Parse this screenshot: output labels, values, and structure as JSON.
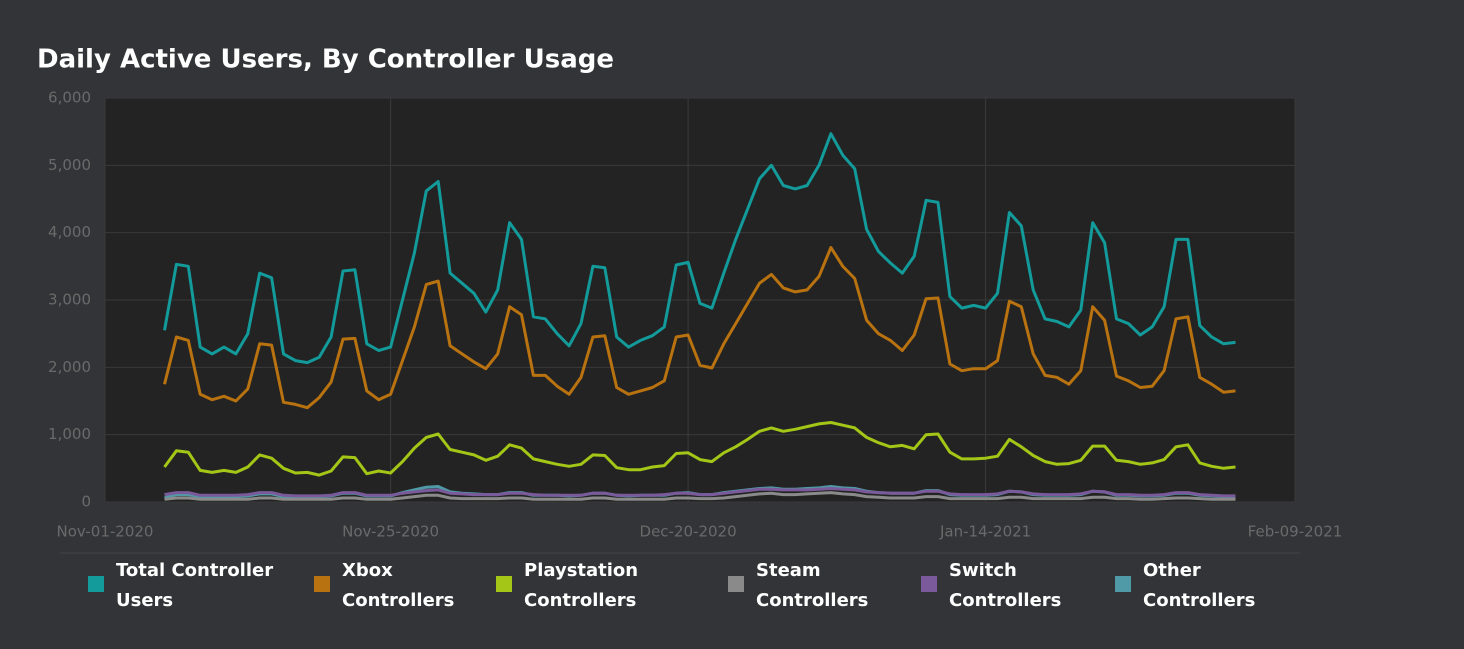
{
  "chart_data": {
    "type": "line",
    "title": "Daily Active Users, By Controller Usage",
    "x": [
      "2020-11-06",
      "2020-11-07",
      "2020-11-08",
      "2020-11-09",
      "2020-11-10",
      "2020-11-11",
      "2020-11-12",
      "2020-11-13",
      "2020-11-14",
      "2020-11-15",
      "2020-11-16",
      "2020-11-17",
      "2020-11-18",
      "2020-11-19",
      "2020-11-20",
      "2020-11-21",
      "2020-11-22",
      "2020-11-23",
      "2020-11-24",
      "2020-11-25",
      "2020-11-26",
      "2020-11-27",
      "2020-11-28",
      "2020-11-29",
      "2020-11-30",
      "2020-12-01",
      "2020-12-02",
      "2020-12-03",
      "2020-12-04",
      "2020-12-05",
      "2020-12-06",
      "2020-12-07",
      "2020-12-08",
      "2020-12-09",
      "2020-12-10",
      "2020-12-11",
      "2020-12-12",
      "2020-12-13",
      "2020-12-14",
      "2020-12-15",
      "2020-12-16",
      "2020-12-17",
      "2020-12-18",
      "2020-12-19",
      "2020-12-20",
      "2020-12-21",
      "2020-12-22",
      "2020-12-23",
      "2020-12-24",
      "2020-12-25",
      "2020-12-26",
      "2020-12-27",
      "2020-12-28",
      "2020-12-29",
      "2020-12-30",
      "2020-12-31",
      "2021-01-01",
      "2021-01-02",
      "2021-01-03",
      "2021-01-04",
      "2021-01-05",
      "2021-01-06",
      "2021-01-07",
      "2021-01-08",
      "2021-01-09",
      "2021-01-10",
      "2021-01-11",
      "2021-01-12",
      "2021-01-13",
      "2021-01-14",
      "2021-01-15",
      "2021-01-16",
      "2021-01-17",
      "2021-01-18",
      "2021-01-19",
      "2021-01-20",
      "2021-01-21",
      "2021-01-22",
      "2021-01-23",
      "2021-01-24",
      "2021-01-25",
      "2021-01-26",
      "2021-01-27",
      "2021-01-28",
      "2021-01-29",
      "2021-01-30",
      "2021-01-31",
      "2021-02-01",
      "2021-02-02",
      "2021-02-03",
      "2021-02-04"
    ],
    "series": [
      {
        "name": "Total Controller Users",
        "color": "#139a9a",
        "values": [
          2550,
          3530,
          3500,
          2300,
          2200,
          2300,
          2200,
          2500,
          3400,
          3330,
          2200,
          2100,
          2070,
          2150,
          2450,
          3430,
          3450,
          2350,
          2250,
          2300,
          3000,
          3700,
          4620,
          4760,
          3400,
          3250,
          3100,
          2820,
          3150,
          4150,
          3900,
          2750,
          2720,
          2500,
          2320,
          2650,
          3500,
          3480,
          2450,
          2300,
          2400,
          2470,
          2600,
          3520,
          3560,
          2950,
          2880,
          3400,
          3900,
          4350,
          4800,
          5000,
          4700,
          4650,
          4700,
          5000,
          5470,
          5150,
          4950,
          4050,
          3720,
          3550,
          3400,
          3650,
          4480,
          4450,
          3050,
          2880,
          2920,
          2880,
          3100,
          4300,
          4100,
          3150,
          2720,
          2680,
          2600,
          2850,
          4150,
          3850,
          2720,
          2650,
          2480,
          2600,
          2900,
          3900,
          3900,
          2620,
          2450,
          2350,
          2370
        ]
      },
      {
        "name": "Xbox Controllers",
        "color": "#b8720f",
        "values": [
          1750,
          2450,
          2400,
          1600,
          1520,
          1570,
          1500,
          1680,
          2350,
          2330,
          1480,
          1450,
          1400,
          1550,
          1780,
          2420,
          2430,
          1650,
          1520,
          1600,
          2100,
          2600,
          3230,
          3280,
          2320,
          2200,
          2080,
          1980,
          2200,
          2900,
          2780,
          1880,
          1880,
          1720,
          1600,
          1850,
          2450,
          2470,
          1700,
          1600,
          1650,
          1700,
          1800,
          2450,
          2480,
          2030,
          1990,
          2350,
          2650,
          2950,
          3250,
          3380,
          3180,
          3120,
          3150,
          3350,
          3780,
          3500,
          3320,
          2700,
          2500,
          2400,
          2250,
          2480,
          3020,
          3030,
          2050,
          1950,
          1980,
          1980,
          2100,
          2980,
          2900,
          2200,
          1880,
          1850,
          1750,
          1950,
          2900,
          2700,
          1870,
          1800,
          1700,
          1720,
          1950,
          2720,
          2750,
          1850,
          1750,
          1630,
          1650
        ]
      },
      {
        "name": "Playstation Controllers",
        "color": "#a3c617",
        "values": [
          520,
          760,
          740,
          470,
          440,
          470,
          440,
          520,
          700,
          650,
          500,
          430,
          440,
          400,
          460,
          670,
          660,
          420,
          460,
          430,
          600,
          800,
          960,
          1010,
          780,
          740,
          700,
          620,
          680,
          850,
          800,
          640,
          600,
          560,
          530,
          560,
          700,
          690,
          510,
          480,
          480,
          520,
          540,
          720,
          730,
          630,
          600,
          730,
          820,
          930,
          1050,
          1100,
          1050,
          1080,
          1120,
          1160,
          1180,
          1140,
          1100,
          960,
          880,
          820,
          840,
          790,
          1000,
          1010,
          740,
          640,
          640,
          650,
          680,
          930,
          820,
          690,
          600,
          560,
          570,
          620,
          830,
          830,
          620,
          600,
          560,
          580,
          630,
          820,
          850,
          580,
          530,
          500,
          520
        ]
      },
      {
        "name": "Steam Controllers",
        "color": "#8a8a8a",
        "values": [
          40,
          60,
          60,
          40,
          40,
          40,
          40,
          40,
          60,
          60,
          40,
          40,
          40,
          40,
          40,
          60,
          60,
          40,
          40,
          40,
          60,
          80,
          100,
          100,
          60,
          50,
          50,
          50,
          50,
          60,
          60,
          40,
          40,
          40,
          40,
          40,
          60,
          60,
          40,
          40,
          40,
          40,
          40,
          60,
          60,
          50,
          50,
          60,
          80,
          100,
          120,
          130,
          110,
          110,
          120,
          130,
          140,
          120,
          110,
          80,
          70,
          60,
          60,
          60,
          80,
          80,
          50,
          50,
          50,
          50,
          50,
          70,
          70,
          50,
          50,
          50,
          50,
          50,
          70,
          70,
          50,
          50,
          40,
          40,
          50,
          60,
          60,
          50,
          40,
          40,
          40
        ]
      },
      {
        "name": "Switch Controllers",
        "color": "#7a5a9a",
        "values": [
          110,
          140,
          140,
          100,
          100,
          100,
          100,
          110,
          140,
          140,
          100,
          90,
          90,
          90,
          100,
          140,
          140,
          100,
          100,
          100,
          130,
          150,
          170,
          180,
          130,
          120,
          110,
          110,
          110,
          130,
          130,
          110,
          100,
          100,
          100,
          100,
          130,
          130,
          100,
          100,
          100,
          100,
          110,
          130,
          130,
          110,
          110,
          130,
          150,
          170,
          190,
          190,
          180,
          180,
          180,
          190,
          200,
          190,
          180,
          150,
          140,
          130,
          130,
          130,
          160,
          160,
          120,
          110,
          110,
          110,
          120,
          160,
          150,
          120,
          110,
          110,
          110,
          120,
          160,
          150,
          110,
          110,
          100,
          100,
          110,
          140,
          140,
          110,
          100,
          90,
          90
        ]
      },
      {
        "name": "Other Controllers",
        "color": "#4f9aa6",
        "values": [
          60,
          110,
          110,
          80,
          80,
          80,
          80,
          90,
          120,
          120,
          80,
          80,
          80,
          80,
          90,
          130,
          130,
          90,
          90,
          90,
          140,
          180,
          220,
          230,
          150,
          130,
          120,
          110,
          110,
          140,
          140,
          100,
          100,
          100,
          90,
          100,
          130,
          130,
          100,
          90,
          100,
          100,
          100,
          130,
          140,
          110,
          110,
          140,
          160,
          180,
          200,
          210,
          190,
          190,
          200,
          210,
          230,
          210,
          200,
          160,
          140,
          130,
          130,
          130,
          170,
          170,
          110,
          100,
          100,
          100,
          110,
          160,
          150,
          110,
          100,
          100,
          100,
          110,
          160,
          150,
          100,
          100,
          90,
          90,
          100,
          130,
          130,
          100,
          90,
          80,
          80
        ]
      }
    ],
    "xlim": [
      "2020-11-01",
      "2021-02-09"
    ],
    "xticks": [
      {
        "value": "2020-11-01",
        "label": "Nov-01-2020"
      },
      {
        "value": "2020-11-25",
        "label": "Nov-25-2020"
      },
      {
        "value": "2020-12-20",
        "label": "Dec-20-2020"
      },
      {
        "value": "2021-01-14",
        "label": "Jan-14-2021"
      },
      {
        "value": "2021-02-09",
        "label": "Feb-09-2021"
      }
    ],
    "ylim": [
      0,
      6000
    ],
    "yticks": [
      0,
      {
        "value": 1000,
        "label": "1,000"
      },
      {
        "value": 2000,
        "label": "2,000"
      },
      {
        "value": 3000,
        "label": "3,000"
      },
      {
        "value": 4000,
        "label": "4,000"
      },
      {
        "value": 5000,
        "label": "5,000"
      },
      {
        "value": 6000,
        "label": "6,000"
      }
    ],
    "grid": true,
    "legend": "bottom"
  }
}
